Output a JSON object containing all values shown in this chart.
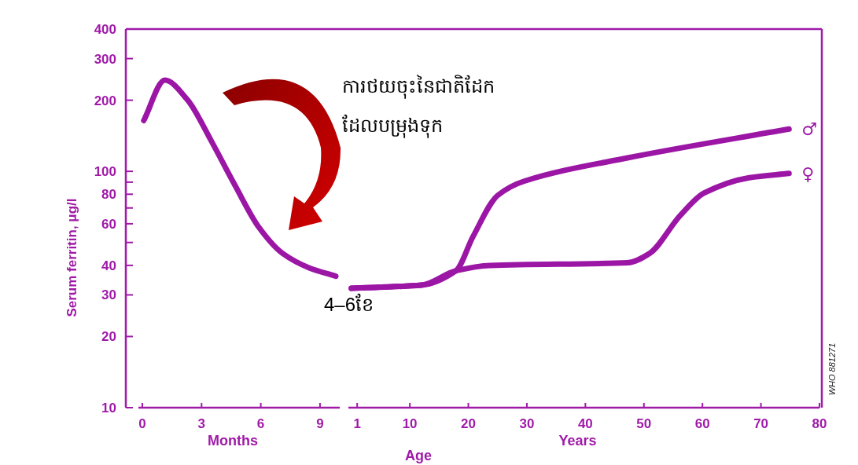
{
  "chart_data": [
    {
      "type": "line",
      "xlabel": "Months",
      "ylabel": "Serum ferritin, μg/l",
      "log": true,
      "x": [
        0.07,
        1.14,
        2.28,
        3.5,
        4.7,
        5.9,
        7.1,
        8.47,
        9.8
      ],
      "series": [
        {
          "color": "#9c16a6",
          "values": [
            164,
            243,
            201,
            134,
            87,
            58,
            45,
            39,
            36
          ]
        }
      ],
      "xlim": [
        -0.2,
        10
      ],
      "xticks": [
        0,
        3,
        6,
        9
      ],
      "ylim": [
        10,
        400
      ],
      "yticks": [
        10,
        20,
        30,
        40,
        {
          "value": 50,
          "label": null
        },
        60,
        {
          "value": 70,
          "label": null
        },
        80,
        {
          "value": 90,
          "label": null
        },
        100,
        200,
        300,
        400
      ],
      "annotations": [
        "ការថយចុះនៃជាតិដែក\nដែលបម្រុងទុក",
        "4–6ខែ",
        "Age"
      ]
    },
    {
      "type": "line",
      "xlabel": "Years",
      "log": true,
      "tick_labels": "x",
      "series": [
        {
          "name": "♂",
          "color": "#9c16a6",
          "x": [
            0,
            12,
            17.9,
            20.8,
            25,
            29.6,
            47.2,
            74.8
          ],
          "values": [
            32,
            33,
            38,
            53,
            79,
            91,
            114,
            151
          ]
        },
        {
          "name": "♀",
          "color": "#9c16a6",
          "x": [
            0,
            12,
            17.9,
            23.7,
            47.2,
            51,
            56.2,
            60.3,
            68,
            74.8
          ],
          "values": [
            32,
            33,
            38,
            40,
            41,
            45,
            65,
            81,
            94,
            98
          ]
        }
      ],
      "xlim": [
        -0.5,
        80
      ],
      "xticks": [
        1,
        10,
        20,
        30,
        40,
        50,
        60,
        70,
        80
      ],
      "ylim": [
        10,
        400
      ],
      "annotations": [
        "WHO 881271"
      ]
    }
  ]
}
